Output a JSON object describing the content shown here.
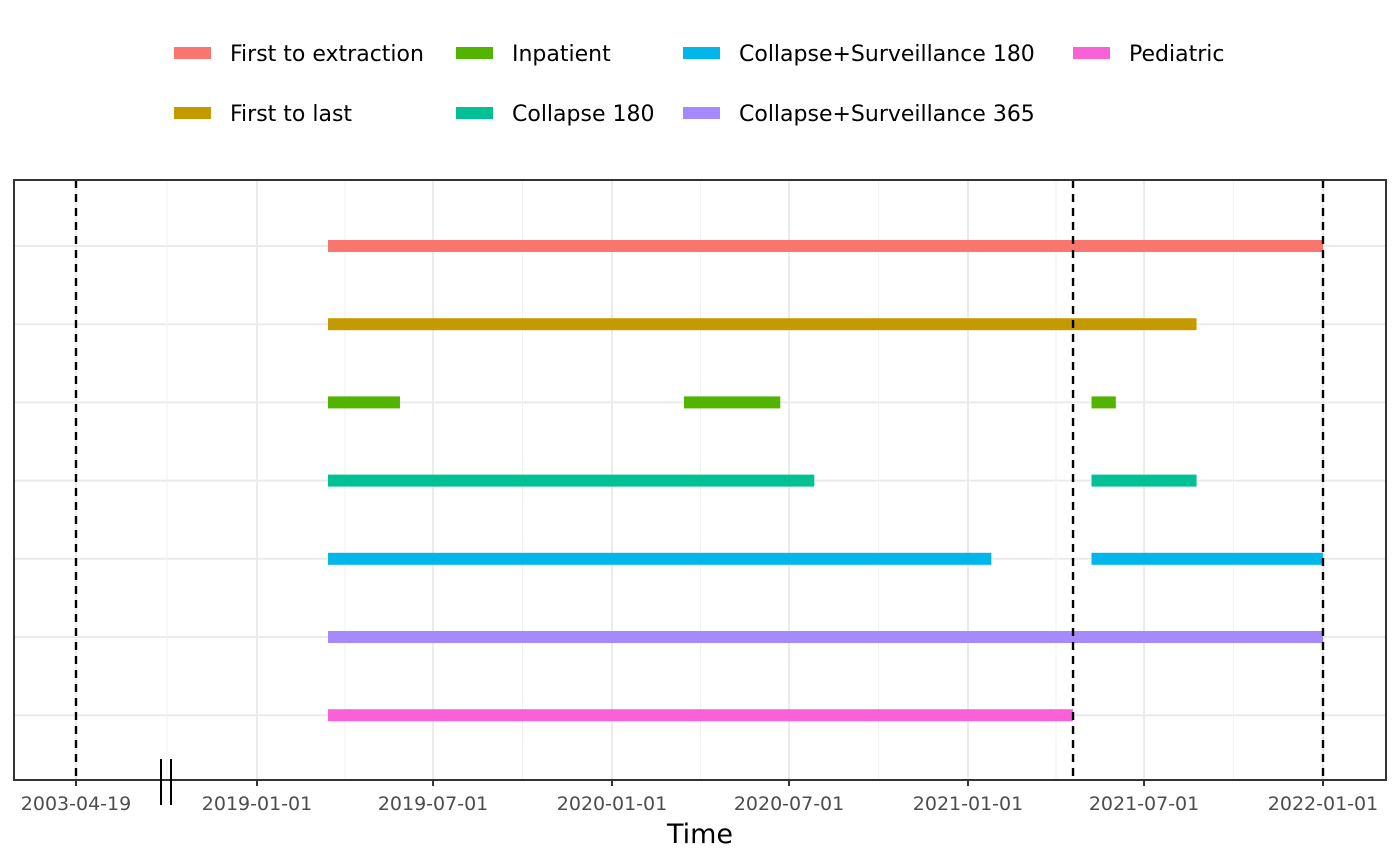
{
  "chart_data": {
    "type": "timeline",
    "xlabel": "Time",
    "ylabel": "",
    "title": "",
    "grid": true,
    "legend_position": "top",
    "axis_break": true,
    "xlim": [
      "2003-04-19",
      "2022-01-01"
    ],
    "x_ticks": [
      "2003-04-19",
      "2019-01-01",
      "2019-07-01",
      "2020-01-01",
      "2020-07-01",
      "2021-01-01",
      "2021-07-01",
      "2022-01-01"
    ],
    "reference_lines": [
      "2003-04-19",
      "2021-04-19",
      "2022-01-01"
    ],
    "series": [
      {
        "name": "First to extraction",
        "color": "#F8766D",
        "segments": [
          [
            "2019-03-15",
            "2022-01-01"
          ]
        ]
      },
      {
        "name": "First to last",
        "color": "#C49A00",
        "segments": [
          [
            "2019-03-15",
            "2021-08-24"
          ]
        ]
      },
      {
        "name": "Inpatient",
        "color": "#53B400",
        "segments": [
          [
            "2019-03-15",
            "2019-05-28"
          ],
          [
            "2020-03-15",
            "2020-06-22"
          ],
          [
            "2021-05-08",
            "2021-06-02"
          ]
        ]
      },
      {
        "name": "Collapse 180",
        "color": "#00C094",
        "segments": [
          [
            "2019-03-15",
            "2020-07-27"
          ],
          [
            "2021-05-08",
            "2021-08-24"
          ]
        ]
      },
      {
        "name": "Collapse+Surveillance 180",
        "color": "#00B6EB",
        "segments": [
          [
            "2019-03-15",
            "2021-01-25"
          ],
          [
            "2021-05-08",
            "2022-01-01"
          ]
        ]
      },
      {
        "name": "Collapse+Surveillance 365",
        "color": "#A58AFF",
        "segments": [
          [
            "2019-03-15",
            "2022-01-01"
          ]
        ]
      },
      {
        "name": "Pediatric",
        "color": "#FB61D7",
        "segments": [
          [
            "2019-03-15",
            "2021-04-19"
          ]
        ]
      }
    ]
  }
}
